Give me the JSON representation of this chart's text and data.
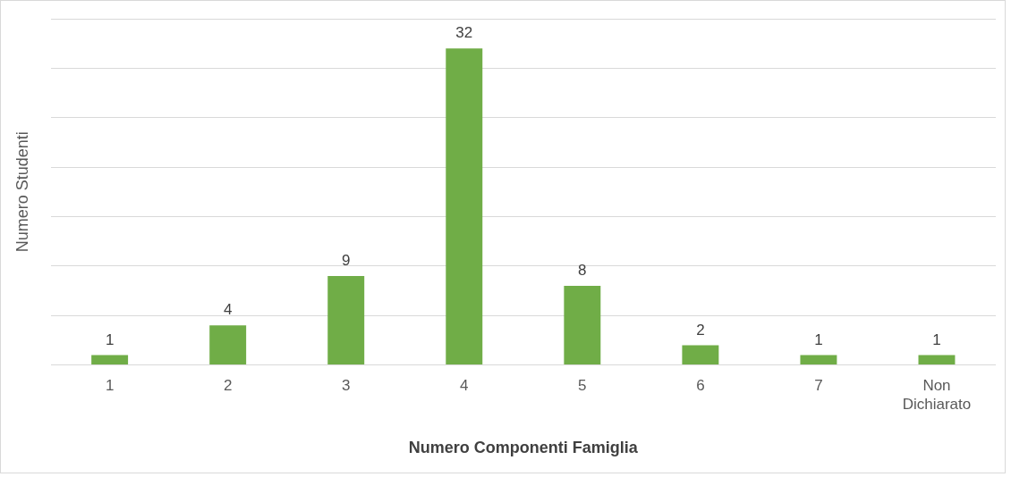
{
  "chart_data": {
    "type": "bar",
    "xlabel": "Numero Componenti Famiglia",
    "ylabel": "Numero Studenti",
    "categories": [
      "1",
      "2",
      "3",
      "4",
      "5",
      "6",
      "7",
      "Non Dichiarato"
    ],
    "series": [
      {
        "color": "#70ad47",
        "values": [
          1,
          4,
          9,
          32,
          8,
          2,
          1,
          1
        ]
      }
    ],
    "ylim": [
      0,
      35
    ],
    "yticks": [
      {
        "value": 0,
        "label": null
      },
      {
        "value": 5,
        "label": null
      },
      {
        "value": 10,
        "label": null
      },
      {
        "value": 15,
        "label": null
      },
      {
        "value": 20,
        "label": null
      },
      {
        "value": 25,
        "label": null
      },
      {
        "value": 30,
        "label": null
      },
      {
        "value": 35,
        "label": null
      }
    ],
    "tick_labels": "x",
    "grid": "y",
    "legend": false,
    "data_labels": true
  }
}
